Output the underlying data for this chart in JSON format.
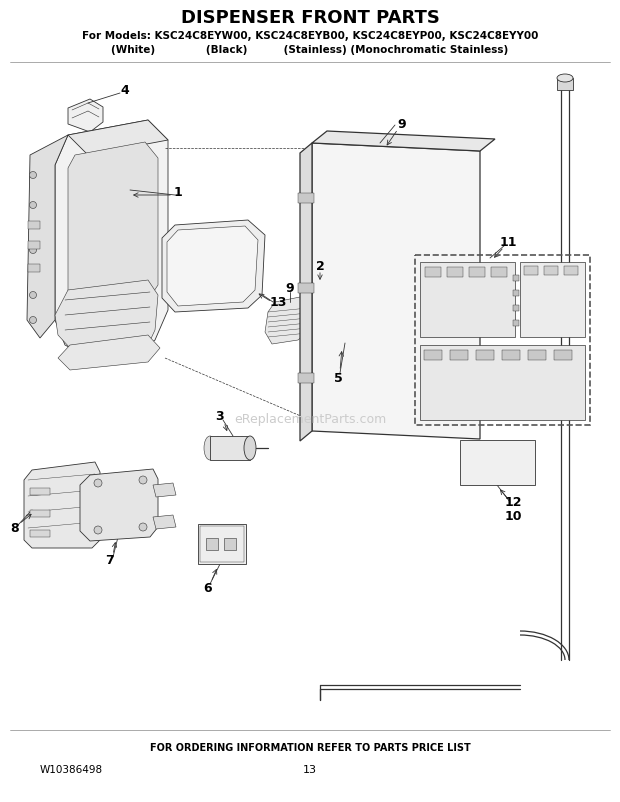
{
  "title": "DISPENSER FRONT PARTS",
  "subtitle1": "For Models: KSC24C8EYW00, KSC24C8EYB00, KSC24C8EYP00, KSC24C8EYY00",
  "subtitle2": "(White)              (Black)          (Stainless) (Monochromatic Stainless)",
  "footer1": "FOR ORDERING INFORMATION REFER TO PARTS PRICE LIST",
  "footer2": "W10386498",
  "footer3": "13",
  "bg_color": "#ffffff",
  "line_color": "#333333",
  "label_color": "#000000",
  "watermark": "eReplacementParts.com"
}
